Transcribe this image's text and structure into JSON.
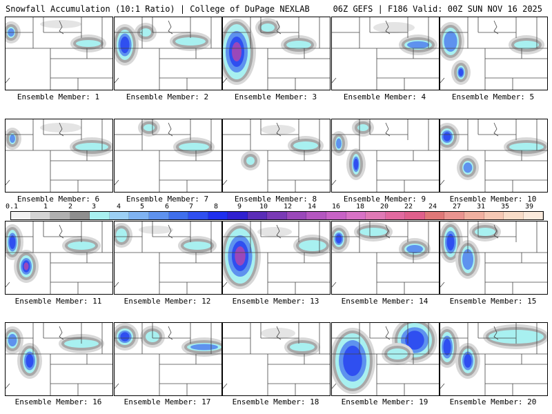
{
  "header": {
    "title_left": "Snowfall Accumulation (10:1 Ratio) | College of DuPage NEXLAB",
    "title_right": "06Z GEFS | F186 Valid: 00Z SUN NOV 16 2025"
  },
  "members": [
    {
      "label": "Ensemble Member: 1"
    },
    {
      "label": "Ensemble Member: 2"
    },
    {
      "label": "Ensemble Member: 3"
    },
    {
      "label": "Ensemble Member: 4"
    },
    {
      "label": "Ensemble Member: 5"
    },
    {
      "label": "Ensemble Member: 6"
    },
    {
      "label": "Ensemble Member: 7"
    },
    {
      "label": "Ensemble Member: 8"
    },
    {
      "label": "Ensemble Member: 9"
    },
    {
      "label": "Ensemble Member: 10"
    },
    {
      "label": "Ensemble Member: 11"
    },
    {
      "label": "Ensemble Member: 12"
    },
    {
      "label": "Ensemble Member: 13"
    },
    {
      "label": "Ensemble Member: 14"
    },
    {
      "label": "Ensemble Member: 15"
    },
    {
      "label": "Ensemble Member: 16"
    },
    {
      "label": "Ensemble Member: 17"
    },
    {
      "label": "Ensemble Member: 18"
    },
    {
      "label": "Ensemble Member: 19"
    },
    {
      "label": "Ensemble Member: 20"
    }
  ],
  "colorbar": {
    "labels": [
      "0.1",
      "1",
      "2",
      "3",
      "4",
      "5",
      "6",
      "7",
      "8",
      "9",
      "10",
      "12",
      "14",
      "16",
      "18",
      "20",
      "22",
      "24",
      "27",
      "31",
      "35",
      "39"
    ],
    "colors": [
      "#f2f2f2",
      "#d4d4d4",
      "#b0b0b0",
      "#8f8f8f",
      "#a8f0f0",
      "#9cd0f5",
      "#7fb3f2",
      "#5e92ee",
      "#3f6fec",
      "#2f4ff0",
      "#1f2fee",
      "#3020d0",
      "#5a2db8",
      "#7a3ab6",
      "#9a48ba",
      "#b456c0",
      "#c862c6",
      "#d872c6",
      "#e07ab6",
      "#e26aa0",
      "#e0608c",
      "#e07878",
      "#ea9490",
      "#f0b0a0",
      "#f5c8b4",
      "#f8dcc8",
      "#fbeadc"
    ]
  }
}
